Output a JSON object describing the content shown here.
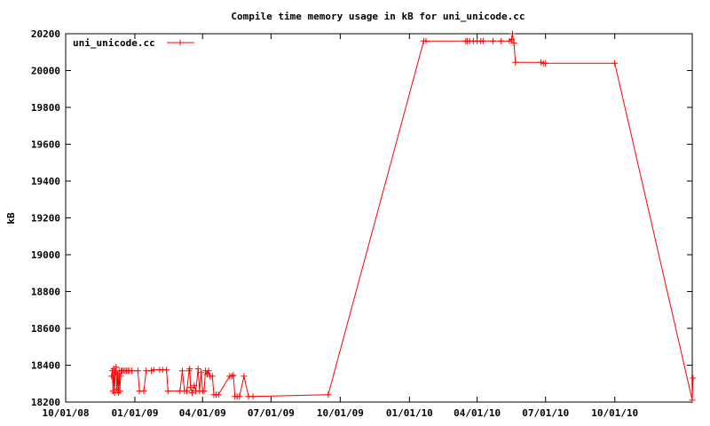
{
  "chart_data": {
    "type": "line",
    "title": "Compile time memory usage in kB for uni_unicode.cc",
    "xlabel": "",
    "ylabel": "kB",
    "ylim": [
      18200,
      20200
    ],
    "xlim": [
      "2008-10-01",
      "2011-01-12"
    ],
    "y_ticks": [
      18200,
      18400,
      18600,
      18800,
      19000,
      19200,
      19400,
      19600,
      19800,
      20000,
      20200
    ],
    "x_ticks": [
      {
        "date": "2008-10-01",
        "label": "10/01/08"
      },
      {
        "date": "2009-01-01",
        "label": "01/01/09"
      },
      {
        "date": "2009-04-01",
        "label": "04/01/09"
      },
      {
        "date": "2009-07-01",
        "label": "07/01/09"
      },
      {
        "date": "2009-10-01",
        "label": "10/01/09"
      },
      {
        "date": "2010-01-01",
        "label": "01/01/10"
      },
      {
        "date": "2010-04-01",
        "label": "04/01/10"
      },
      {
        "date": "2010-07-01",
        "label": "07/01/10"
      },
      {
        "date": "2010-10-01",
        "label": "10/01/10"
      }
    ],
    "grid": false,
    "legend_position": "top-left",
    "series_color": "#ff0000",
    "series": [
      {
        "name": "uni_unicode.cc",
        "marker": "plus",
        "points": [
          [
            "2008-12-01",
            18340
          ],
          [
            "2008-12-02",
            18370
          ],
          [
            "2008-12-03",
            18260
          ],
          [
            "2008-12-04",
            18380
          ],
          [
            "2008-12-05",
            18250
          ],
          [
            "2008-12-06",
            18360
          ],
          [
            "2008-12-07",
            18390
          ],
          [
            "2008-12-08",
            18270
          ],
          [
            "2008-12-09",
            18350
          ],
          [
            "2008-12-10",
            18250
          ],
          [
            "2008-12-11",
            18370
          ],
          [
            "2008-12-12",
            18260
          ],
          [
            "2008-12-13",
            18340
          ],
          [
            "2008-12-14",
            18370
          ],
          [
            "2008-12-15",
            18370
          ],
          [
            "2008-12-17",
            18370
          ],
          [
            "2008-12-19",
            18370
          ],
          [
            "2008-12-21",
            18370
          ],
          [
            "2008-12-23",
            18370
          ],
          [
            "2008-12-25",
            18370
          ],
          [
            "2008-12-28",
            18370
          ],
          [
            "2009-01-05",
            18370
          ],
          [
            "2009-01-07",
            18260
          ],
          [
            "2009-01-13",
            18260
          ],
          [
            "2009-01-16",
            18370
          ],
          [
            "2009-01-23",
            18370
          ],
          [
            "2009-01-26",
            18375
          ],
          [
            "2009-02-03",
            18375
          ],
          [
            "2009-02-07",
            18375
          ],
          [
            "2009-02-12",
            18375
          ],
          [
            "2009-02-14",
            18260
          ],
          [
            "2009-03-02",
            18260
          ],
          [
            "2009-03-05",
            18370
          ],
          [
            "2009-03-08",
            18260
          ],
          [
            "2009-03-11",
            18260
          ],
          [
            "2009-03-14",
            18370
          ],
          [
            "2009-03-15",
            18380
          ],
          [
            "2009-03-16",
            18280
          ],
          [
            "2009-03-18",
            18250
          ],
          [
            "2009-03-21",
            18290
          ],
          [
            "2009-03-23",
            18260
          ],
          [
            "2009-03-26",
            18380
          ],
          [
            "2009-03-28",
            18260
          ],
          [
            "2009-03-30",
            18360
          ],
          [
            "2009-04-01",
            18260
          ],
          [
            "2009-04-03",
            18260
          ],
          [
            "2009-04-05",
            18370
          ],
          [
            "2009-04-07",
            18350
          ],
          [
            "2009-04-09",
            18370
          ],
          [
            "2009-04-11",
            18340
          ],
          [
            "2009-04-14",
            18340
          ],
          [
            "2009-04-16",
            18240
          ],
          [
            "2009-04-19",
            18240
          ],
          [
            "2009-04-22",
            18240
          ],
          [
            "2009-05-07",
            18340
          ],
          [
            "2009-05-10",
            18340
          ],
          [
            "2009-05-12",
            18345
          ],
          [
            "2009-05-14",
            18230
          ],
          [
            "2009-05-17",
            18230
          ],
          [
            "2009-05-20",
            18230
          ],
          [
            "2009-05-26",
            18340
          ],
          [
            "2009-06-01",
            18230
          ],
          [
            "2009-06-07",
            18230
          ],
          [
            "2009-09-15",
            18240
          ],
          [
            "2010-01-20",
            20160
          ],
          [
            "2010-01-23",
            20160
          ],
          [
            "2010-03-17",
            20160
          ],
          [
            "2010-03-19",
            20160
          ],
          [
            "2010-03-22",
            20160
          ],
          [
            "2010-03-27",
            20160
          ],
          [
            "2010-04-01",
            20160
          ],
          [
            "2010-04-06",
            20160
          ],
          [
            "2010-04-09",
            20160
          ],
          [
            "2010-04-22",
            20160
          ],
          [
            "2010-05-03",
            20160
          ],
          [
            "2010-05-14",
            20160
          ],
          [
            "2010-05-17",
            20170
          ],
          [
            "2010-05-18",
            20200
          ],
          [
            "2010-05-20",
            20150
          ],
          [
            "2010-05-22",
            20045
          ],
          [
            "2010-06-25",
            20045
          ],
          [
            "2010-06-28",
            20040
          ],
          [
            "2010-07-01",
            20040
          ],
          [
            "2010-10-01",
            20040
          ],
          [
            "2011-01-12",
            18210
          ],
          [
            "2011-01-13",
            18330
          ]
        ]
      }
    ]
  }
}
